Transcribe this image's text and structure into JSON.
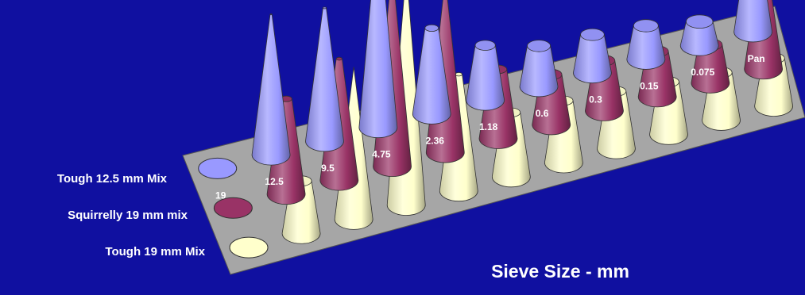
{
  "chart_data": {
    "type": "3d-cone",
    "categories": [
      "19",
      "12.5",
      "9.5",
      "4.75",
      "2.36",
      "1.18",
      "0.6",
      "0.3",
      "0.15",
      "0.075",
      "Pan"
    ],
    "series": [
      {
        "name": "Tough 12.5 mm Mix",
        "color": "#ffffcc",
        "values": [
          0,
          2.2,
          6.4,
          9.9,
          4.9,
          2.7,
          2.6,
          2.4,
          2.2,
          2.0,
          2.0
        ]
      },
      {
        "name": "Squirrelly 19 mm mix",
        "color": "#993366",
        "values": [
          0,
          4.0,
          5.1,
          8.4,
          7.3,
          2.9,
          2.1,
          2.1,
          1.9,
          1.6,
          3.1
        ]
      },
      {
        "name": "Tough 19 mm Mix",
        "color": "#9999ff",
        "values": [
          0,
          5.9,
          5.6,
          8.8,
          3.6,
          2.3,
          1.7,
          1.6,
          1.4,
          1.0,
          3.1
        ]
      }
    ],
    "xlabel": "Sieve Size - mm",
    "ylabel": "",
    "legend": "left",
    "grid": false,
    "background": "#1010a0",
    "floor_color": "#a6a6a6"
  }
}
